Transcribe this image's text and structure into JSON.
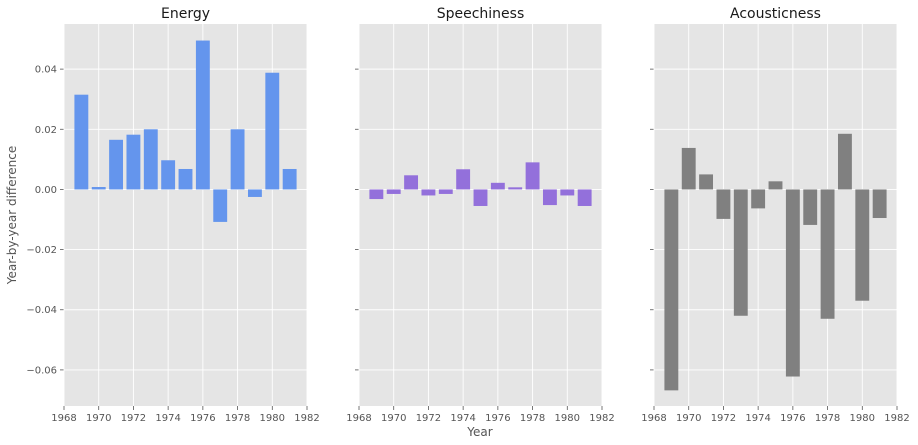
{
  "figure": {
    "xlabel": "Year",
    "ylabel": "Year-by-year difference",
    "sharey": true
  },
  "chart_data": [
    {
      "type": "bar",
      "title": "Energy",
      "color": "#6495ed",
      "x": [
        1969,
        1970,
        1971,
        1972,
        1973,
        1974,
        1975,
        1976,
        1977,
        1978,
        1979,
        1980,
        1981
      ],
      "values": [
        0.0315,
        0.0008,
        0.0165,
        0.0182,
        0.02,
        0.0097,
        0.0068,
        0.0495,
        -0.0108,
        0.02,
        -0.0025,
        0.0388,
        0.0068
      ],
      "xlim": [
        1968,
        1982
      ],
      "ylim": [
        -0.072,
        0.055
      ],
      "xticks": [
        1968,
        1970,
        1972,
        1974,
        1976,
        1978,
        1980,
        1982
      ],
      "yticks": [
        -0.06,
        -0.04,
        -0.02,
        0.0,
        0.02,
        0.04
      ],
      "ytick_labels": [
        "−0.06",
        "−0.04",
        "−0.02",
        "0.00",
        "0.02",
        "0.04"
      ],
      "grid": true
    },
    {
      "type": "bar",
      "title": "Speechiness",
      "color": "#9370db",
      "x": [
        1969,
        1970,
        1971,
        1972,
        1973,
        1974,
        1975,
        1976,
        1977,
        1978,
        1979,
        1980,
        1981
      ],
      "values": [
        -0.0032,
        -0.0015,
        0.0047,
        -0.002,
        -0.0015,
        0.0067,
        -0.0055,
        0.0022,
        0.0007,
        0.009,
        -0.0052,
        -0.002,
        -0.0055
      ],
      "xlim": [
        1968,
        1982
      ],
      "ylim": [
        -0.072,
        0.055
      ],
      "xticks": [
        1968,
        1970,
        1972,
        1974,
        1976,
        1978,
        1980,
        1982
      ],
      "grid": true
    },
    {
      "type": "bar",
      "title": "Acousticness",
      "color": "#808080",
      "x": [
        1969,
        1970,
        1971,
        1972,
        1973,
        1974,
        1975,
        1976,
        1977,
        1978,
        1979,
        1980,
        1981
      ],
      "values": [
        -0.0668,
        0.0138,
        0.005,
        -0.0098,
        -0.042,
        -0.0063,
        0.0027,
        -0.0622,
        -0.0118,
        -0.043,
        0.0185,
        -0.037,
        -0.0095
      ],
      "xlim": [
        1968,
        1982
      ],
      "ylim": [
        -0.072,
        0.055
      ],
      "xticks": [
        1968,
        1970,
        1972,
        1974,
        1976,
        1978,
        1980,
        1982
      ],
      "grid": true
    }
  ]
}
